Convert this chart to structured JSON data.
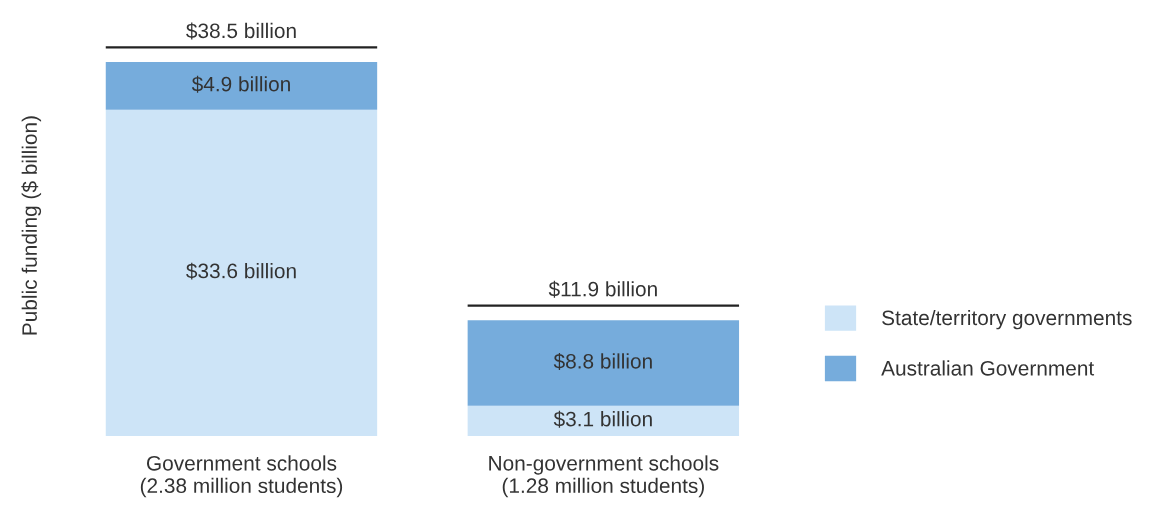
{
  "chart_data": {
    "type": "bar",
    "stacked": true,
    "ylabel": "Public funding ($ billion)",
    "categories": [
      "Government schools\n(2.38 million students)",
      "Non-government schools\n(1.28 million students)"
    ],
    "series": [
      {
        "name": "State/territory governments",
        "color": "#cde4f7",
        "values": [
          33.6,
          3.1
        ],
        "value_labels": [
          "$33.6 billion",
          "$3.1 billion"
        ]
      },
      {
        "name": "Australian Government",
        "color": "#76acdc",
        "values": [
          4.9,
          8.8
        ],
        "value_labels": [
          "$4.9 billion",
          "$8.8 billion"
        ]
      }
    ],
    "totals": [
      "$38.5 billion",
      "$11.9 billion"
    ],
    "legend": "right",
    "grid": false,
    "tick_labels": "x"
  }
}
